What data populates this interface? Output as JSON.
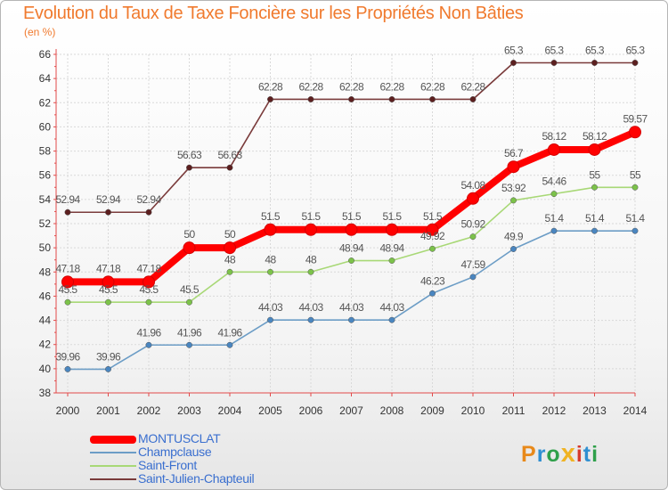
{
  "title": "Evolution du Taux de Taxe Foncière sur les Propriétés Non Bâties",
  "unit_label": "(en %)",
  "logo": {
    "letters": [
      "P",
      "r",
      "o",
      "x",
      "i",
      "t",
      "i"
    ],
    "colors": [
      "#e8891a",
      "#2f8fd1",
      "#2fa04a",
      "#f0b323",
      "#d63b2f",
      "#2f8fd1",
      "#2fa04a"
    ]
  },
  "chart_data": {
    "type": "line",
    "title": "Evolution du Taux de Taxe Foncière sur les Propriétés Non Bâties",
    "ylabel": "(en %)",
    "xlabel": "",
    "ylim": [
      38,
      66
    ],
    "yticks": [
      38,
      40,
      42,
      44,
      46,
      48,
      50,
      52,
      54,
      56,
      58,
      60,
      62,
      64,
      66
    ],
    "categories": [
      "2000",
      "2001",
      "2002",
      "2003",
      "2004",
      "2005",
      "2006",
      "2007",
      "2008",
      "2009",
      "2010",
      "2011",
      "2012",
      "2013",
      "2014"
    ],
    "grid": true,
    "legend_position": "bottom-left",
    "series": [
      {
        "name": "MONTUSCLAT",
        "color": "#ff0000",
        "marker": "#ee0000",
        "values": [
          47.18,
          47.18,
          47.18,
          50,
          50,
          51.5,
          51.5,
          51.5,
          51.5,
          51.5,
          54.08,
          56.7,
          58.12,
          58.12,
          59.57
        ],
        "labels": [
          "47.18",
          "47.18",
          "47.18",
          "50",
          "50",
          "51.5",
          "51.5",
          "51.5",
          "51.5",
          "51.5",
          "54.08",
          "56.7",
          "58.12",
          "58.12",
          "59.57"
        ]
      },
      {
        "name": "Champclause",
        "color": "#6c9dc6",
        "marker": "#4a86c0",
        "values": [
          39.96,
          39.96,
          41.96,
          41.96,
          41.96,
          44.03,
          44.03,
          44.03,
          44.03,
          46.23,
          47.59,
          49.9,
          51.4,
          51.4,
          51.4
        ],
        "labels": [
          "39.96",
          "39.96",
          "41.96",
          "41.96",
          "41.96",
          "44.03",
          "44.03",
          "44.03",
          "44.03",
          "46.23",
          "47.59",
          "49.9",
          "51.4",
          "51.4",
          "51.4"
        ]
      },
      {
        "name": "Saint-Front",
        "color": "#a8d876",
        "marker": "#7cc24a",
        "values": [
          45.5,
          45.5,
          45.5,
          45.5,
          48,
          48,
          48,
          48.94,
          48.94,
          49.92,
          50.92,
          53.92,
          54.46,
          55,
          55
        ],
        "labels": [
          "45.5",
          "45.5",
          "45.5",
          "45.5",
          "48",
          "48",
          "48",
          "48.94",
          "48.94",
          "49.92",
          "50.92",
          "53.92",
          "54.46",
          "55",
          "55"
        ]
      },
      {
        "name": "Saint-Julien-Chapteuil",
        "color": "#7a3b3b",
        "marker": "#5c1f1f",
        "values": [
          52.94,
          52.94,
          52.94,
          56.63,
          56.63,
          62.28,
          62.28,
          62.28,
          62.28,
          62.28,
          62.28,
          65.3,
          65.3,
          65.3,
          65.3
        ],
        "labels": [
          "52.94",
          "52.94",
          "52.94",
          "56.63",
          "56.63",
          "62.28",
          "62.28",
          "62.28",
          "62.28",
          "62.28",
          "62.28",
          "65.3",
          "65.3",
          "65.3",
          "65.3"
        ]
      }
    ]
  }
}
